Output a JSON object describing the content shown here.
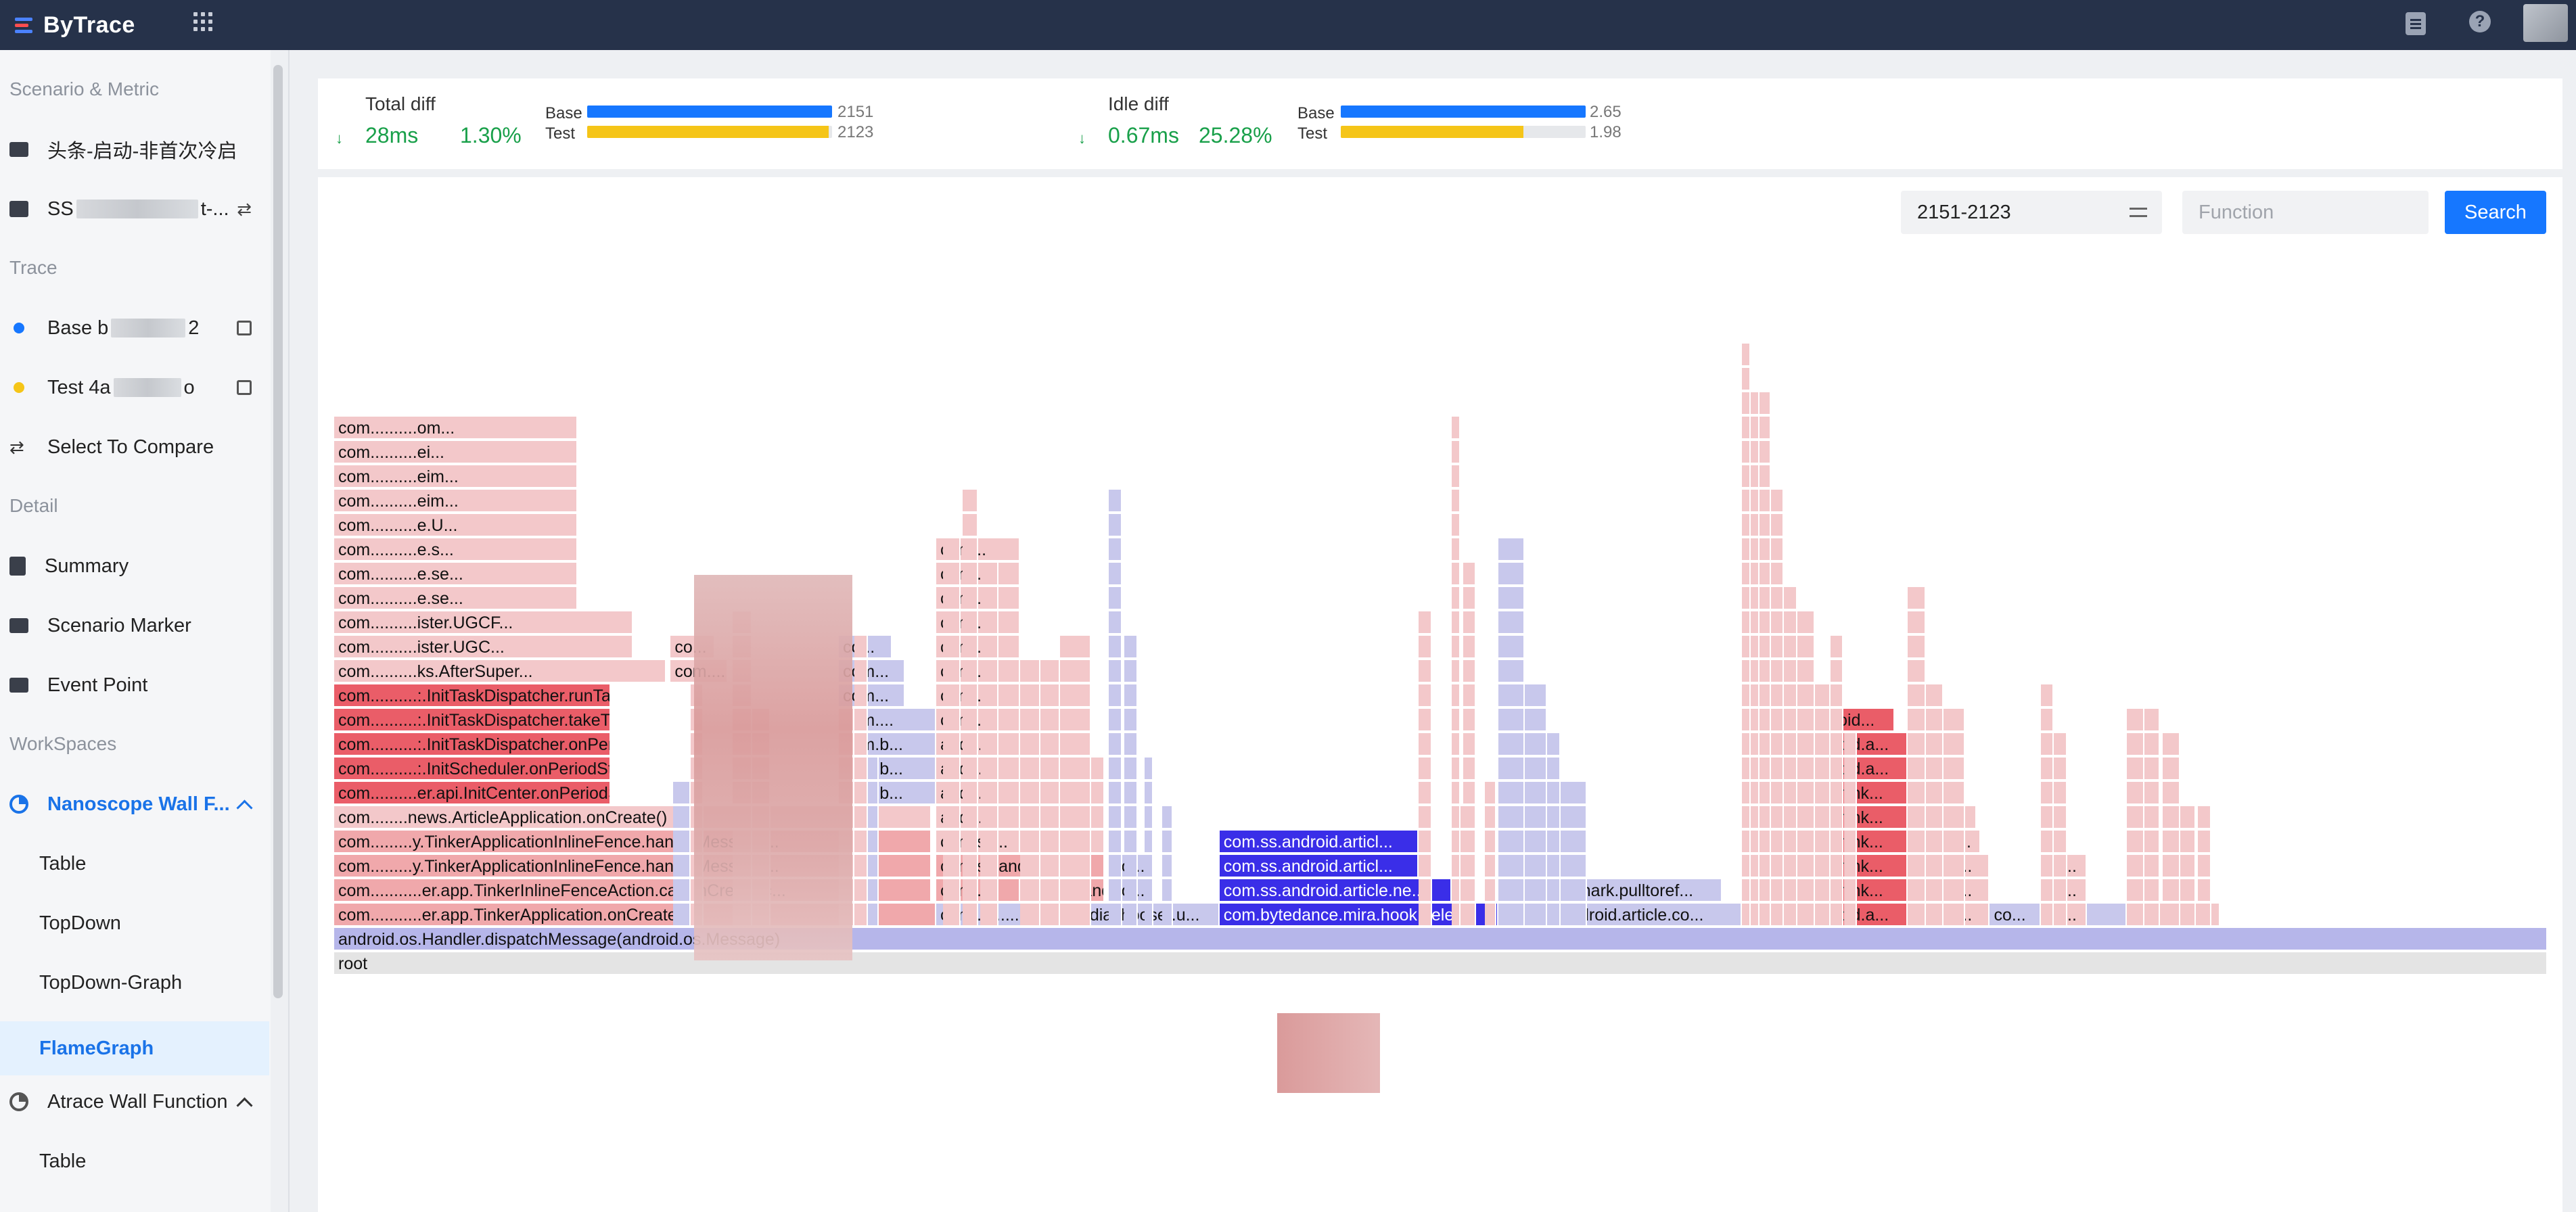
{
  "app": {
    "title": "ByTrace"
  },
  "sidebar": {
    "sections": {
      "scenario": "Scenario & Metric",
      "trace": "Trace",
      "detail": "Detail",
      "workspaces": "WorkSpaces"
    },
    "scenario_name": "头条-启动-非首次冷启",
    "metric_name_prefix": "SS",
    "metric_name_suffix": "t-...",
    "base_label": "Base b",
    "base_suffix": "2",
    "test_label": "Test 4a",
    "test_suffix": "o",
    "select_compare": "Select To Compare",
    "detail_items": [
      "Summary",
      "Scenario Marker",
      "Event Point"
    ],
    "workspace_1": {
      "label": "Nanoscope Wall F...",
      "children": [
        "Table",
        "TopDown",
        "TopDown-Graph",
        "FlameGraph"
      ]
    },
    "workspace_2": {
      "label": "Atrace Wall Function",
      "children": [
        "Table"
      ]
    },
    "colors": {
      "base_dot": "#1677ff",
      "test_dot": "#f5c518",
      "active": "#1a73e8"
    }
  },
  "summary": {
    "total": {
      "label": "Total diff",
      "arrow": "↓",
      "value": "28ms",
      "percent": "1.30%",
      "base_label": "Base",
      "base_value": "2151",
      "base_fraction": 1.0,
      "test_label": "Test",
      "test_value": "2123",
      "test_fraction": 0.987
    },
    "idle": {
      "label": "Idle diff",
      "arrow": "↓",
      "value": "0.67ms",
      "percent": "25.28%",
      "base_label": "Base",
      "base_value": "2.65",
      "base_fraction": 1.0,
      "test_label": "Test",
      "test_value": "1.98",
      "test_fraction": 0.747
    },
    "colors": {
      "base": "#1677ff",
      "test": "#f5c518",
      "good": "#19a04a"
    }
  },
  "controls": {
    "range": "2151-2123",
    "function_placeholder": "Function",
    "search": "Search"
  },
  "flame": {
    "root": "root",
    "dispatch": "android.os.Handler.dispatchMessage(android.os.Message)",
    "colors": {
      "root": "#e4e4e4",
      "dispatch": "#b6b6ea",
      "red_strong": "#ea5d68",
      "red_mid": "#f0a8ab",
      "red_light": "#f3c8ca",
      "blue_strong": "#3a2ee8",
      "blue_light": "#c8c8ec"
    },
    "frames": [
      {
        "level": 0,
        "start": 0.0,
        "end": 0.272,
        "label": "com...........er.app.TinkerApplication.onCreate()",
        "color": "red_mid"
      },
      {
        "level": 0,
        "start": 0.272,
        "end": 0.4,
        "label": "com....................mediachooser.u...",
        "color": "blue_light"
      },
      {
        "level": 0,
        "start": 0.4,
        "end": 0.526,
        "label": "com.bytedance.mira.hook.dele...",
        "color": "blue_strong"
      },
      {
        "level": 0,
        "start": 0.526,
        "end": 0.636,
        "label": "com.ss.android.article.co...",
        "color": "blue_light"
      },
      {
        "level": 0,
        "start": 0.636,
        "end": 0.711,
        "label": "com.ss.android.a...",
        "color": "red_strong"
      },
      {
        "level": 0,
        "start": 0.711,
        "end": 0.748,
        "label": "com.b...",
        "color": "red_light"
      },
      {
        "level": 0,
        "start": 0.748,
        "end": 0.771,
        "label": "co...",
        "color": "blue_light"
      },
      {
        "level": 0,
        "start": 0.771,
        "end": 0.792,
        "label": "co...",
        "color": "red_light"
      },
      {
        "level": 0,
        "start": 0.792,
        "end": 0.81,
        "label": "",
        "color": "blue_light"
      },
      {
        "level": 0,
        "start": 0.81,
        "end": 0.852,
        "label": "",
        "color": "red_light"
      },
      {
        "level": 1,
        "start": 0.0,
        "end": 0.27,
        "label": "com...........er.app.TinkerInlineFenceAction.callOnCreate(c...",
        "color": "red_mid"
      },
      {
        "level": 1,
        "start": 0.272,
        "end": 0.31,
        "label": "com...",
        "color": "red_mid"
      },
      {
        "level": 1,
        "start": 0.31,
        "end": 0.348,
        "label": "com.ss.android.art...",
        "color": "red_mid"
      },
      {
        "level": 1,
        "start": 0.35,
        "end": 0.37,
        "label": "co...",
        "color": "blue_light"
      },
      {
        "level": 1,
        "start": 0.4,
        "end": 0.505,
        "label": "com.ss.android.article.ne...",
        "color": "blue_strong"
      },
      {
        "level": 1,
        "start": 0.526,
        "end": 0.627,
        "label": "com.handmark.pulltoref...",
        "color": "blue_light"
      },
      {
        "level": 1,
        "start": 0.636,
        "end": 0.711,
        "label": "com.tencent.tink...",
        "color": "red_strong"
      },
      {
        "level": 1,
        "start": 0.711,
        "end": 0.748,
        "label": "com.b...",
        "color": "red_light"
      },
      {
        "level": 1,
        "start": 0.771,
        "end": 0.792,
        "label": "co...",
        "color": "red_light"
      },
      {
        "level": 2,
        "start": 0.0,
        "end": 0.27,
        "label": "com.........y.TinkerApplicationInlineFence.handleMessage...",
        "color": "red_mid"
      },
      {
        "level": 2,
        "start": 0.272,
        "end": 0.348,
        "label": "com.ss.android.ne...",
        "color": "red_mid"
      },
      {
        "level": 2,
        "start": 0.35,
        "end": 0.37,
        "label": "co...",
        "color": "blue_light"
      },
      {
        "level": 2,
        "start": 0.4,
        "end": 0.49,
        "label": "com.ss.android.articl...",
        "color": "blue_strong"
      },
      {
        "level": 2,
        "start": 0.636,
        "end": 0.711,
        "label": "com.tencent.tink...",
        "color": "red_strong"
      },
      {
        "level": 2,
        "start": 0.711,
        "end": 0.748,
        "label": "com.b...",
        "color": "red_light"
      },
      {
        "level": 2,
        "start": 0.771,
        "end": 0.792,
        "label": "co...",
        "color": "red_light"
      },
      {
        "level": 3,
        "start": 0.0,
        "end": 0.27,
        "label": "com.........y.TinkerApplicationInlineFence.handleMessage...",
        "color": "red_mid"
      },
      {
        "level": 3,
        "start": 0.272,
        "end": 0.31,
        "label": "com.ss...",
        "color": "red_light"
      },
      {
        "level": 3,
        "start": 0.31,
        "end": 0.348,
        "label": "com.ss...",
        "color": "red_light"
      },
      {
        "level": 3,
        "start": 0.4,
        "end": 0.49,
        "label": "com.ss.android.articl...",
        "color": "blue_strong"
      },
      {
        "level": 3,
        "start": 0.636,
        "end": 0.711,
        "label": "com.tencent.tink...",
        "color": "red_strong"
      },
      {
        "level": 3,
        "start": 0.711,
        "end": 0.744,
        "label": "com.s...",
        "color": "red_light"
      },
      {
        "level": 4,
        "start": 0.0,
        "end": 0.27,
        "label": "com........news.ArticleApplication.onCreate()",
        "color": "red_light"
      },
      {
        "level": 4,
        "start": 0.272,
        "end": 0.31,
        "label": "andr...",
        "color": "red_light"
      },
      {
        "level": 4,
        "start": 0.31,
        "end": 0.348,
        "label": "com.b...",
        "color": "red_light"
      },
      {
        "level": 4,
        "start": 0.636,
        "end": 0.711,
        "label": "com.tencent.tink...",
        "color": "red_strong"
      },
      {
        "level": 4,
        "start": 0.711,
        "end": 0.742,
        "label": "com....",
        "color": "red_light"
      },
      {
        "level": 5,
        "start": 0.0,
        "end": 0.125,
        "label": "com..........er.api.InitCenter.onPeriodStart(co...",
        "color": "red_strong"
      },
      {
        "level": 5,
        "start": 0.228,
        "end": 0.272,
        "label": "com.b...",
        "color": "blue_light"
      },
      {
        "level": 5,
        "start": 0.272,
        "end": 0.31,
        "label": "andr...",
        "color": "red_light"
      },
      {
        "level": 5,
        "start": 0.31,
        "end": 0.348,
        "label": "com....",
        "color": "red_light"
      },
      {
        "level": 5,
        "start": 0.636,
        "end": 0.711,
        "label": "com.tencent.tink...",
        "color": "red_strong"
      },
      {
        "level": 5,
        "start": 0.711,
        "end": 0.729,
        "label": "co...",
        "color": "red_light"
      },
      {
        "level": 6,
        "start": 0.0,
        "end": 0.125,
        "label": "com..........:.InitScheduler.onPeriodStart(com....",
        "color": "red_strong"
      },
      {
        "level": 6,
        "start": 0.228,
        "end": 0.272,
        "label": "com.b...",
        "color": "blue_light"
      },
      {
        "level": 6,
        "start": 0.272,
        "end": 0.31,
        "label": "andr...",
        "color": "red_light"
      },
      {
        "level": 6,
        "start": 0.31,
        "end": 0.348,
        "label": "com.s...",
        "color": "red_light"
      },
      {
        "level": 6,
        "start": 0.636,
        "end": 0.711,
        "label": "com.ss.android.a...",
        "color": "red_strong"
      },
      {
        "level": 7,
        "start": 0.0,
        "end": 0.125,
        "label": "com..........:.InitTaskDispatcher.onPeriod(com....",
        "color": "red_strong"
      },
      {
        "level": 7,
        "start": 0.228,
        "end": 0.272,
        "label": "com.b...",
        "color": "blue_light"
      },
      {
        "level": 7,
        "start": 0.272,
        "end": 0.31,
        "label": "andr...",
        "color": "red_light"
      },
      {
        "level": 7,
        "start": 0.636,
        "end": 0.711,
        "label": "com.ss.android.a...",
        "color": "red_strong"
      },
      {
        "level": 8,
        "start": 0.0,
        "end": 0.125,
        "label": "com..........:.InitTaskDispatcher.takeTaskInMai...",
        "color": "red_strong"
      },
      {
        "level": 8,
        "start": 0.228,
        "end": 0.272,
        "label": "com....",
        "color": "blue_light"
      },
      {
        "level": 8,
        "start": 0.272,
        "end": 0.31,
        "label": "com....",
        "color": "red_light"
      },
      {
        "level": 8,
        "start": 0.636,
        "end": 0.705,
        "label": "com.ss.android...",
        "color": "red_strong"
      },
      {
        "level": 9,
        "start": 0.0,
        "end": 0.125,
        "label": "com..........:.InitTaskDispatcher.runTask(co...",
        "color": "red_strong"
      },
      {
        "level": 9,
        "start": 0.228,
        "end": 0.258,
        "label": "com...",
        "color": "blue_light"
      },
      {
        "level": 9,
        "start": 0.272,
        "end": 0.31,
        "label": "com....",
        "color": "red_light"
      },
      {
        "level": 10,
        "start": 0.0,
        "end": 0.15,
        "label": "com..........ks.AfterSuper...",
        "color": "red_light"
      },
      {
        "level": 10,
        "start": 0.152,
        "end": 0.178,
        "label": "com....",
        "color": "red_light"
      },
      {
        "level": 10,
        "start": 0.228,
        "end": 0.258,
        "label": "com...",
        "color": "blue_light"
      },
      {
        "level": 10,
        "start": 0.272,
        "end": 0.31,
        "label": "com....",
        "color": "red_light"
      },
      {
        "level": 11,
        "start": 0.0,
        "end": 0.135,
        "label": "com..........ister.UGC...",
        "color": "red_light"
      },
      {
        "level": 11,
        "start": 0.152,
        "end": 0.172,
        "label": "co...",
        "color": "red_light"
      },
      {
        "level": 11,
        "start": 0.228,
        "end": 0.252,
        "label": "co...",
        "color": "blue_light"
      },
      {
        "level": 11,
        "start": 0.272,
        "end": 0.31,
        "label": "com...",
        "color": "red_light"
      },
      {
        "level": 12,
        "start": 0.0,
        "end": 0.135,
        "label": "com..........ister.UGCF...",
        "color": "red_light"
      },
      {
        "level": 12,
        "start": 0.272,
        "end": 0.31,
        "label": "com...",
        "color": "red_light"
      },
      {
        "level": 13,
        "start": 0.0,
        "end": 0.11,
        "label": "com..........e.se...",
        "color": "red_light"
      },
      {
        "level": 13,
        "start": 0.272,
        "end": 0.31,
        "label": "com...",
        "color": "red_light"
      },
      {
        "level": 14,
        "start": 0.0,
        "end": 0.11,
        "label": "com..........e.se...",
        "color": "red_light"
      },
      {
        "level": 14,
        "start": 0.272,
        "end": 0.31,
        "label": "com...",
        "color": "red_light"
      },
      {
        "level": 15,
        "start": 0.0,
        "end": 0.11,
        "label": "com..........e.s...",
        "color": "red_light"
      },
      {
        "level": 15,
        "start": 0.272,
        "end": 0.31,
        "label": "com...",
        "color": "red_light"
      },
      {
        "level": 16,
        "start": 0.0,
        "end": 0.11,
        "label": "com..........e.U...",
        "color": "red_light"
      },
      {
        "level": 17,
        "start": 0.0,
        "end": 0.11,
        "label": "com..........eim...",
        "color": "red_light"
      },
      {
        "level": 18,
        "start": 0.0,
        "end": 0.11,
        "label": "com..........eim...",
        "color": "red_light"
      },
      {
        "level": 19,
        "start": 0.0,
        "end": 0.11,
        "label": "com..........ei...",
        "color": "red_light"
      },
      {
        "level": 20,
        "start": 0.0,
        "end": 0.11,
        "label": "com..........om...",
        "color": "red_light"
      }
    ],
    "spikes": [
      {
        "x": 0.153,
        "w": 0.008,
        "h": 6,
        "color": "blue_light"
      },
      {
        "x": 0.161,
        "w": 0.006,
        "h": 10,
        "color": "red_light"
      },
      {
        "x": 0.18,
        "w": 0.009,
        "h": 13,
        "color": "red_light"
      },
      {
        "x": 0.189,
        "w": 0.008,
        "h": 9,
        "color": "red_light"
      },
      {
        "x": 0.228,
        "w": 0.007,
        "h": 9,
        "color": "red_light"
      },
      {
        "x": 0.235,
        "w": 0.006,
        "h": 12,
        "color": "red_light"
      },
      {
        "x": 0.241,
        "w": 0.005,
        "h": 7,
        "color": "blue_light"
      },
      {
        "x": 0.275,
        "w": 0.008,
        "h": 16,
        "color": "red_light"
      },
      {
        "x": 0.284,
        "w": 0.007,
        "h": 18,
        "color": "red_light"
      },
      {
        "x": 0.292,
        "w": 0.008,
        "h": 15,
        "color": "red_light"
      },
      {
        "x": 0.31,
        "w": 0.009,
        "h": 11,
        "color": "red_light"
      },
      {
        "x": 0.319,
        "w": 0.009,
        "h": 11,
        "color": "red_light"
      },
      {
        "x": 0.328,
        "w": 0.014,
        "h": 12,
        "color": "red_light"
      },
      {
        "x": 0.35,
        "w": 0.006,
        "h": 18,
        "color": "blue_light"
      },
      {
        "x": 0.357,
        "w": 0.006,
        "h": 12,
        "color": "blue_light"
      },
      {
        "x": 0.366,
        "w": 0.004,
        "h": 7,
        "color": "blue_light"
      },
      {
        "x": 0.374,
        "w": 0.005,
        "h": 5,
        "color": "blue_light"
      },
      {
        "x": 0.49,
        "w": 0.006,
        "h": 13,
        "color": "red_light"
      },
      {
        "x": 0.507,
        "w": 0.005,
        "h": 5,
        "color": "red_light"
      },
      {
        "x": 0.505,
        "w": 0.004,
        "h": 21,
        "color": "red_light"
      },
      {
        "x": 0.51,
        "w": 0.006,
        "h": 15,
        "color": "red_light"
      },
      {
        "x": 0.52,
        "w": 0.005,
        "h": 6,
        "color": "red_light"
      },
      {
        "x": 0.526,
        "w": 0.012,
        "h": 16,
        "color": "blue_light"
      },
      {
        "x": 0.538,
        "w": 0.01,
        "h": 10,
        "color": "blue_light"
      },
      {
        "x": 0.548,
        "w": 0.006,
        "h": 8,
        "color": "blue_light"
      },
      {
        "x": 0.554,
        "w": 0.012,
        "h": 6,
        "color": "blue_light"
      },
      {
        "x": 0.636,
        "w": 0.004,
        "h": 24,
        "color": "red_light"
      },
      {
        "x": 0.64,
        "w": 0.004,
        "h": 22,
        "color": "red_light"
      },
      {
        "x": 0.644,
        "w": 0.005,
        "h": 22,
        "color": "red_light"
      },
      {
        "x": 0.649,
        "w": 0.006,
        "h": 18,
        "color": "red_light"
      },
      {
        "x": 0.655,
        "w": 0.006,
        "h": 14,
        "color": "red_light"
      },
      {
        "x": 0.661,
        "w": 0.008,
        "h": 13,
        "color": "red_light"
      },
      {
        "x": 0.669,
        "w": 0.007,
        "h": 10,
        "color": "red_light"
      },
      {
        "x": 0.676,
        "w": 0.006,
        "h": 12,
        "color": "red_light"
      },
      {
        "x": 0.682,
        "w": 0.006,
        "h": 8,
        "color": "red_light"
      },
      {
        "x": 0.711,
        "w": 0.008,
        "h": 14,
        "color": "red_light"
      },
      {
        "x": 0.719,
        "w": 0.008,
        "h": 10,
        "color": "red_light"
      },
      {
        "x": 0.727,
        "w": 0.01,
        "h": 9,
        "color": "red_light"
      },
      {
        "x": 0.771,
        "w": 0.006,
        "h": 10,
        "color": "red_light"
      },
      {
        "x": 0.777,
        "w": 0.006,
        "h": 8,
        "color": "red_light"
      },
      {
        "x": 0.81,
        "w": 0.008,
        "h": 9,
        "color": "red_light"
      },
      {
        "x": 0.818,
        "w": 0.007,
        "h": 9,
        "color": "red_light"
      },
      {
        "x": 0.826,
        "w": 0.008,
        "h": 8,
        "color": "red_light"
      },
      {
        "x": 0.834,
        "w": 0.007,
        "h": 5,
        "color": "red_light"
      },
      {
        "x": 0.842,
        "w": 0.006,
        "h": 5,
        "color": "red_light"
      }
    ]
  }
}
